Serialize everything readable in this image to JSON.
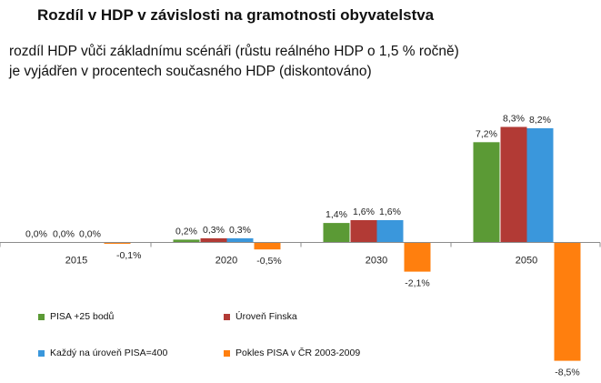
{
  "title": "Rozdíl v HDP v závislosti na gramotnosti obyvatelstva",
  "subtitle_line1": "rozdíl HDP vůči základnímu scénáři (růstu reálného HDP o 1,5 % ročně)",
  "subtitle_line2": "je vyjádřen v procentech současného HDP (diskontováno)",
  "chart_data": {
    "type": "bar",
    "categories": [
      "2015",
      "2020",
      "2030",
      "2050"
    ],
    "series": [
      {
        "name": "PISA +25 bodů",
        "color": "#5b9a35",
        "values": [
          0.0,
          0.2,
          1.4,
          7.2
        ],
        "labels": [
          "0,0%",
          "0,2%",
          "1,4%",
          "7,2%"
        ]
      },
      {
        "name": "Úroveň Finska",
        "color": "#b23a35",
        "values": [
          0.0,
          0.3,
          1.6,
          8.3
        ],
        "labels": [
          "0,0%",
          "0,3%",
          "1,6%",
          "8,3%"
        ]
      },
      {
        "name": "Každý na úroveň PISA=400",
        "color": "#3a97dc",
        "values": [
          0.0,
          0.3,
          1.6,
          8.2
        ],
        "labels": [
          "0,0%",
          "0,3%",
          "1,6%",
          "8,2%"
        ]
      },
      {
        "name": "Pokles PISA v ČR 2003-2009",
        "color": "#ff7f0e",
        "values": [
          -0.1,
          -0.5,
          -2.1,
          -8.5
        ],
        "labels": [
          "-0,1%",
          "-0,5%",
          "-2,1%",
          "-8,5%"
        ]
      }
    ],
    "ylim": [
      -8.5,
      8.3
    ],
    "grid": false,
    "legend_position": "bottom-left"
  }
}
